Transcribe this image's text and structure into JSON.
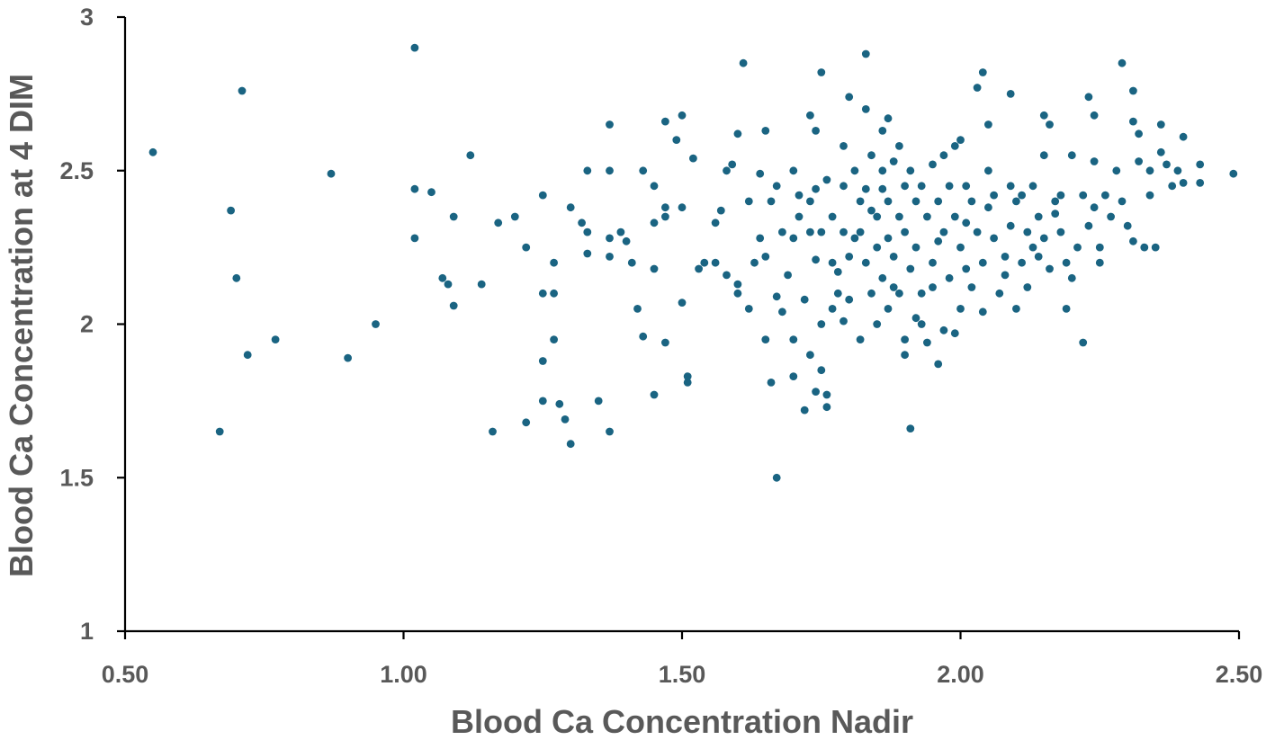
{
  "chart_data": {
    "type": "scatter",
    "title": "",
    "xlabel": "Blood Ca Concentration Nadir",
    "ylabel": "Blood Ca Concentration at 4 DIM",
    "xlim": [
      0.5,
      2.5
    ],
    "ylim": [
      1,
      3
    ],
    "x_ticks": [
      "0.50",
      "1.00",
      "1.50",
      "2.00",
      "2.50"
    ],
    "y_ticks": [
      "1",
      "1.5",
      "2",
      "2.5",
      "3"
    ],
    "grid": false,
    "legend": "none",
    "marker_color": "#1a6482",
    "points": [
      [
        0.55,
        2.56
      ],
      [
        0.67,
        1.65
      ],
      [
        0.69,
        2.37
      ],
      [
        0.7,
        2.15
      ],
      [
        0.71,
        2.76
      ],
      [
        0.72,
        1.9
      ],
      [
        0.77,
        1.95
      ],
      [
        0.87,
        2.49
      ],
      [
        0.9,
        1.89
      ],
      [
        0.95,
        2.0
      ],
      [
        1.02,
        2.9
      ],
      [
        1.02,
        2.44
      ],
      [
        1.02,
        2.28
      ],
      [
        1.05,
        2.43
      ],
      [
        1.07,
        2.15
      ],
      [
        1.08,
        2.13
      ],
      [
        1.09,
        2.35
      ],
      [
        1.09,
        2.06
      ],
      [
        1.12,
        2.55
      ],
      [
        1.14,
        2.13
      ],
      [
        1.16,
        1.65
      ],
      [
        1.17,
        2.33
      ],
      [
        1.2,
        2.35
      ],
      [
        1.22,
        2.25
      ],
      [
        1.22,
        1.68
      ],
      [
        1.25,
        2.42
      ],
      [
        1.25,
        2.1
      ],
      [
        1.25,
        1.88
      ],
      [
        1.25,
        1.75
      ],
      [
        1.27,
        2.2
      ],
      [
        1.27,
        2.1
      ],
      [
        1.27,
        1.95
      ],
      [
        1.28,
        1.74
      ],
      [
        1.29,
        1.69
      ],
      [
        1.3,
        1.61
      ],
      [
        1.3,
        2.38
      ],
      [
        1.32,
        2.33
      ],
      [
        1.33,
        2.3
      ],
      [
        1.33,
        2.23
      ],
      [
        1.33,
        2.5
      ],
      [
        1.35,
        1.75
      ],
      [
        1.37,
        2.65
      ],
      [
        1.37,
        2.5
      ],
      [
        1.37,
        2.28
      ],
      [
        1.37,
        2.22
      ],
      [
        1.37,
        1.65
      ],
      [
        1.39,
        2.3
      ],
      [
        1.4,
        2.27
      ],
      [
        1.41,
        2.2
      ],
      [
        1.42,
        2.05
      ],
      [
        1.43,
        1.96
      ],
      [
        1.43,
        2.5
      ],
      [
        1.45,
        2.45
      ],
      [
        1.45,
        2.33
      ],
      [
        1.45,
        2.18
      ],
      [
        1.45,
        1.77
      ],
      [
        1.47,
        2.66
      ],
      [
        1.47,
        2.38
      ],
      [
        1.47,
        2.35
      ],
      [
        1.47,
        1.94
      ],
      [
        1.49,
        2.6
      ],
      [
        1.5,
        2.68
      ],
      [
        1.5,
        2.38
      ],
      [
        1.51,
        1.83
      ],
      [
        1.51,
        1.81
      ],
      [
        1.5,
        2.07
      ],
      [
        1.52,
        2.54
      ],
      [
        1.53,
        2.18
      ],
      [
        1.54,
        2.2
      ],
      [
        1.56,
        2.2
      ],
      [
        1.56,
        2.33
      ],
      [
        1.57,
        2.37
      ],
      [
        1.58,
        2.5
      ],
      [
        1.59,
        2.52
      ],
      [
        1.6,
        2.62
      ],
      [
        1.6,
        2.13
      ],
      [
        1.6,
        2.1
      ],
      [
        1.61,
        2.85
      ],
      [
        1.62,
        2.05
      ],
      [
        1.63,
        2.2
      ],
      [
        1.64,
        2.28
      ],
      [
        1.65,
        2.63
      ],
      [
        1.65,
        2.22
      ],
      [
        1.65,
        1.95
      ],
      [
        1.66,
        2.4
      ],
      [
        1.66,
        1.81
      ],
      [
        1.67,
        2.45
      ],
      [
        1.67,
        2.09
      ],
      [
        1.67,
        1.5
      ],
      [
        1.68,
        2.3
      ],
      [
        1.68,
        2.04
      ],
      [
        1.7,
        2.5
      ],
      [
        1.7,
        2.28
      ],
      [
        1.7,
        1.95
      ],
      [
        1.7,
        1.83
      ],
      [
        1.71,
        2.42
      ],
      [
        1.72,
        2.08
      ],
      [
        1.72,
        1.72
      ],
      [
        1.73,
        2.68
      ],
      [
        1.73,
        2.4
      ],
      [
        1.73,
        2.3
      ],
      [
        1.73,
        1.9
      ],
      [
        1.74,
        2.63
      ],
      [
        1.74,
        2.44
      ],
      [
        1.74,
        1.78
      ],
      [
        1.75,
        2.82
      ],
      [
        1.75,
        2.3
      ],
      [
        1.75,
        2.0
      ],
      [
        1.75,
        1.85
      ],
      [
        1.76,
        2.47
      ],
      [
        1.76,
        1.77
      ],
      [
        1.76,
        1.73
      ],
      [
        1.77,
        2.35
      ],
      [
        1.77,
        2.2
      ],
      [
        1.77,
        2.05
      ],
      [
        1.78,
        2.1
      ],
      [
        1.79,
        2.58
      ],
      [
        1.79,
        2.45
      ],
      [
        1.79,
        2.3
      ],
      [
        1.8,
        2.74
      ],
      [
        1.8,
        2.22
      ],
      [
        1.8,
        2.08
      ],
      [
        1.81,
        2.5
      ],
      [
        1.82,
        2.4
      ],
      [
        1.82,
        2.3
      ],
      [
        1.82,
        1.95
      ],
      [
        1.83,
        2.88
      ],
      [
        1.83,
        2.7
      ],
      [
        1.83,
        2.44
      ],
      [
        1.83,
        2.2
      ],
      [
        1.84,
        2.55
      ],
      [
        1.84,
        2.1
      ],
      [
        1.85,
        2.35
      ],
      [
        1.85,
        2.25
      ],
      [
        1.85,
        2.0
      ],
      [
        1.86,
        2.63
      ],
      [
        1.86,
        2.5
      ],
      [
        1.86,
        2.15
      ],
      [
        1.87,
        2.67
      ],
      [
        1.87,
        2.4
      ],
      [
        1.87,
        2.28
      ],
      [
        1.87,
        2.05
      ],
      [
        1.88,
        2.53
      ],
      [
        1.88,
        2.22
      ],
      [
        1.89,
        2.58
      ],
      [
        1.89,
        2.35
      ],
      [
        1.89,
        2.1
      ],
      [
        1.9,
        2.45
      ],
      [
        1.9,
        2.3
      ],
      [
        1.9,
        1.95
      ],
      [
        1.9,
        1.9
      ],
      [
        1.91,
        1.66
      ],
      [
        1.91,
        2.5
      ],
      [
        1.91,
        2.18
      ],
      [
        1.92,
        2.4
      ],
      [
        1.92,
        2.25
      ],
      [
        1.93,
        2.45
      ],
      [
        1.93,
        2.1
      ],
      [
        1.93,
        2.0
      ],
      [
        1.94,
        2.35
      ],
      [
        1.94,
        1.94
      ],
      [
        1.95,
        2.52
      ],
      [
        1.95,
        2.2
      ],
      [
        1.96,
        2.4
      ],
      [
        1.96,
        1.87
      ],
      [
        1.97,
        2.55
      ],
      [
        1.97,
        2.3
      ],
      [
        1.97,
        1.98
      ],
      [
        1.98,
        2.45
      ],
      [
        1.98,
        2.15
      ],
      [
        1.99,
        2.58
      ],
      [
        1.99,
        2.35
      ],
      [
        1.99,
        1.97
      ],
      [
        2.0,
        2.6
      ],
      [
        2.0,
        2.25
      ],
      [
        2.0,
        2.05
      ],
      [
        2.01,
        2.45
      ],
      [
        2.01,
        2.18
      ],
      [
        2.02,
        2.4
      ],
      [
        2.02,
        2.12
      ],
      [
        2.03,
        2.77
      ],
      [
        2.03,
        2.3
      ],
      [
        2.04,
        2.82
      ],
      [
        2.04,
        2.2
      ],
      [
        2.04,
        2.04
      ],
      [
        2.05,
        2.5
      ],
      [
        2.05,
        2.38
      ],
      [
        2.05,
        2.65
      ],
      [
        2.06,
        2.28
      ],
      [
        2.07,
        2.1
      ],
      [
        2.08,
        2.22
      ],
      [
        2.09,
        2.75
      ],
      [
        2.09,
        2.45
      ],
      [
        2.09,
        2.32
      ],
      [
        2.1,
        2.4
      ],
      [
        2.1,
        2.05
      ],
      [
        2.11,
        2.42
      ],
      [
        2.11,
        2.2
      ],
      [
        2.12,
        2.3
      ],
      [
        2.12,
        2.12
      ],
      [
        2.13,
        2.45
      ],
      [
        2.13,
        2.25
      ],
      [
        2.14,
        2.35
      ],
      [
        2.15,
        2.68
      ],
      [
        2.15,
        2.55
      ],
      [
        2.15,
        2.28
      ],
      [
        2.16,
        2.65
      ],
      [
        2.16,
        2.18
      ],
      [
        2.17,
        2.4
      ],
      [
        2.18,
        2.42
      ],
      [
        2.18,
        2.3
      ],
      [
        2.19,
        2.2
      ],
      [
        2.19,
        2.05
      ],
      [
        2.2,
        2.55
      ],
      [
        2.2,
        2.15
      ],
      [
        2.21,
        2.25
      ],
      [
        2.22,
        1.94
      ],
      [
        2.22,
        2.42
      ],
      [
        2.23,
        2.74
      ],
      [
        2.23,
        2.32
      ],
      [
        2.24,
        2.68
      ],
      [
        2.24,
        2.53
      ],
      [
        2.24,
        2.38
      ],
      [
        2.25,
        2.25
      ],
      [
        2.25,
        2.2
      ],
      [
        2.26,
        2.42
      ],
      [
        2.27,
        2.35
      ],
      [
        2.28,
        2.5
      ],
      [
        2.29,
        2.85
      ],
      [
        2.29,
        2.4
      ],
      [
        2.3,
        2.32
      ],
      [
        2.31,
        2.76
      ],
      [
        2.31,
        2.66
      ],
      [
        2.31,
        2.27
      ],
      [
        2.32,
        2.53
      ],
      [
        2.32,
        2.62
      ],
      [
        2.33,
        2.25
      ],
      [
        2.34,
        2.5
      ],
      [
        2.34,
        2.42
      ],
      [
        2.35,
        2.25
      ],
      [
        2.36,
        2.65
      ],
      [
        2.36,
        2.56
      ],
      [
        2.37,
        2.52
      ],
      [
        2.38,
        2.45
      ],
      [
        2.39,
        2.5
      ],
      [
        2.4,
        2.61
      ],
      [
        2.4,
        2.46
      ],
      [
        2.43,
        2.46
      ],
      [
        2.43,
        2.52
      ],
      [
        2.49,
        2.49
      ],
      [
        1.58,
        2.16
      ],
      [
        1.62,
        2.4
      ],
      [
        1.69,
        2.16
      ],
      [
        1.74,
        2.21
      ],
      [
        1.78,
        2.17
      ],
      [
        1.81,
        2.28
      ],
      [
        1.84,
        2.37
      ],
      [
        1.88,
        2.12
      ],
      [
        1.92,
        2.02
      ],
      [
        1.96,
        2.27
      ],
      [
        2.01,
        2.33
      ],
      [
        2.06,
        2.42
      ],
      [
        2.08,
        2.16
      ],
      [
        2.14,
        2.22
      ],
      [
        2.17,
        2.36
      ],
      [
        1.64,
        2.49
      ],
      [
        1.71,
        2.35
      ],
      [
        1.79,
        2.01
      ],
      [
        1.86,
        2.44
      ],
      [
        1.95,
        2.12
      ]
    ]
  }
}
